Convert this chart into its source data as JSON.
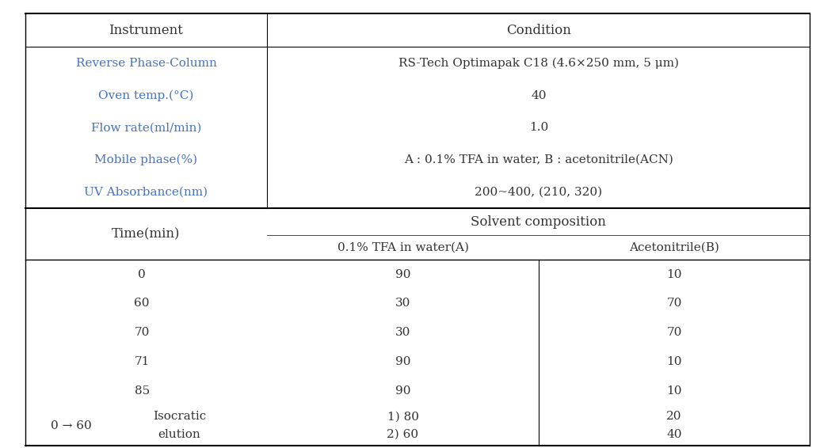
{
  "bg_color": "#ffffff",
  "text_color": "#333333",
  "blue_color": "#4472c4",
  "header_top_row": [
    "Instrument",
    "Condition"
  ],
  "instrument_rows": [
    [
      "Reverse Phase-Column",
      "RS-Tech Optimapak C18 (4.6×250 mm, 5 μm)"
    ],
    [
      "Oven temp.(°C)",
      "40"
    ],
    [
      "Flow rate(ml/min)",
      "1.0"
    ],
    [
      "Mobile phase(%)",
      "A : 0.1% TFA in water, B : acetonitrile(ACN)"
    ],
    [
      "UV Absorbance(nm)",
      "200~400, (210, 320)"
    ]
  ],
  "solvent_header": "Solvent composition",
  "solvent_subheaders": [
    "0.1% TFA in water(A)",
    "Acetonitrile(B)"
  ],
  "time_header": "Time(min)",
  "solvent_rows": [
    [
      "0",
      "90",
      "10"
    ],
    [
      "60",
      "30",
      "70"
    ],
    [
      "70",
      "30",
      "70"
    ],
    [
      "71",
      "90",
      "10"
    ],
    [
      "85",
      "90",
      "10"
    ]
  ],
  "isocratic_time": "0 → 60",
  "isocratic_label": [
    "Isocratic",
    "elution"
  ],
  "isocratic_rows": [
    [
      "1) 80",
      "20"
    ],
    [
      "2) 60",
      "40"
    ]
  ],
  "font_size": 11,
  "title_font_size": 12
}
